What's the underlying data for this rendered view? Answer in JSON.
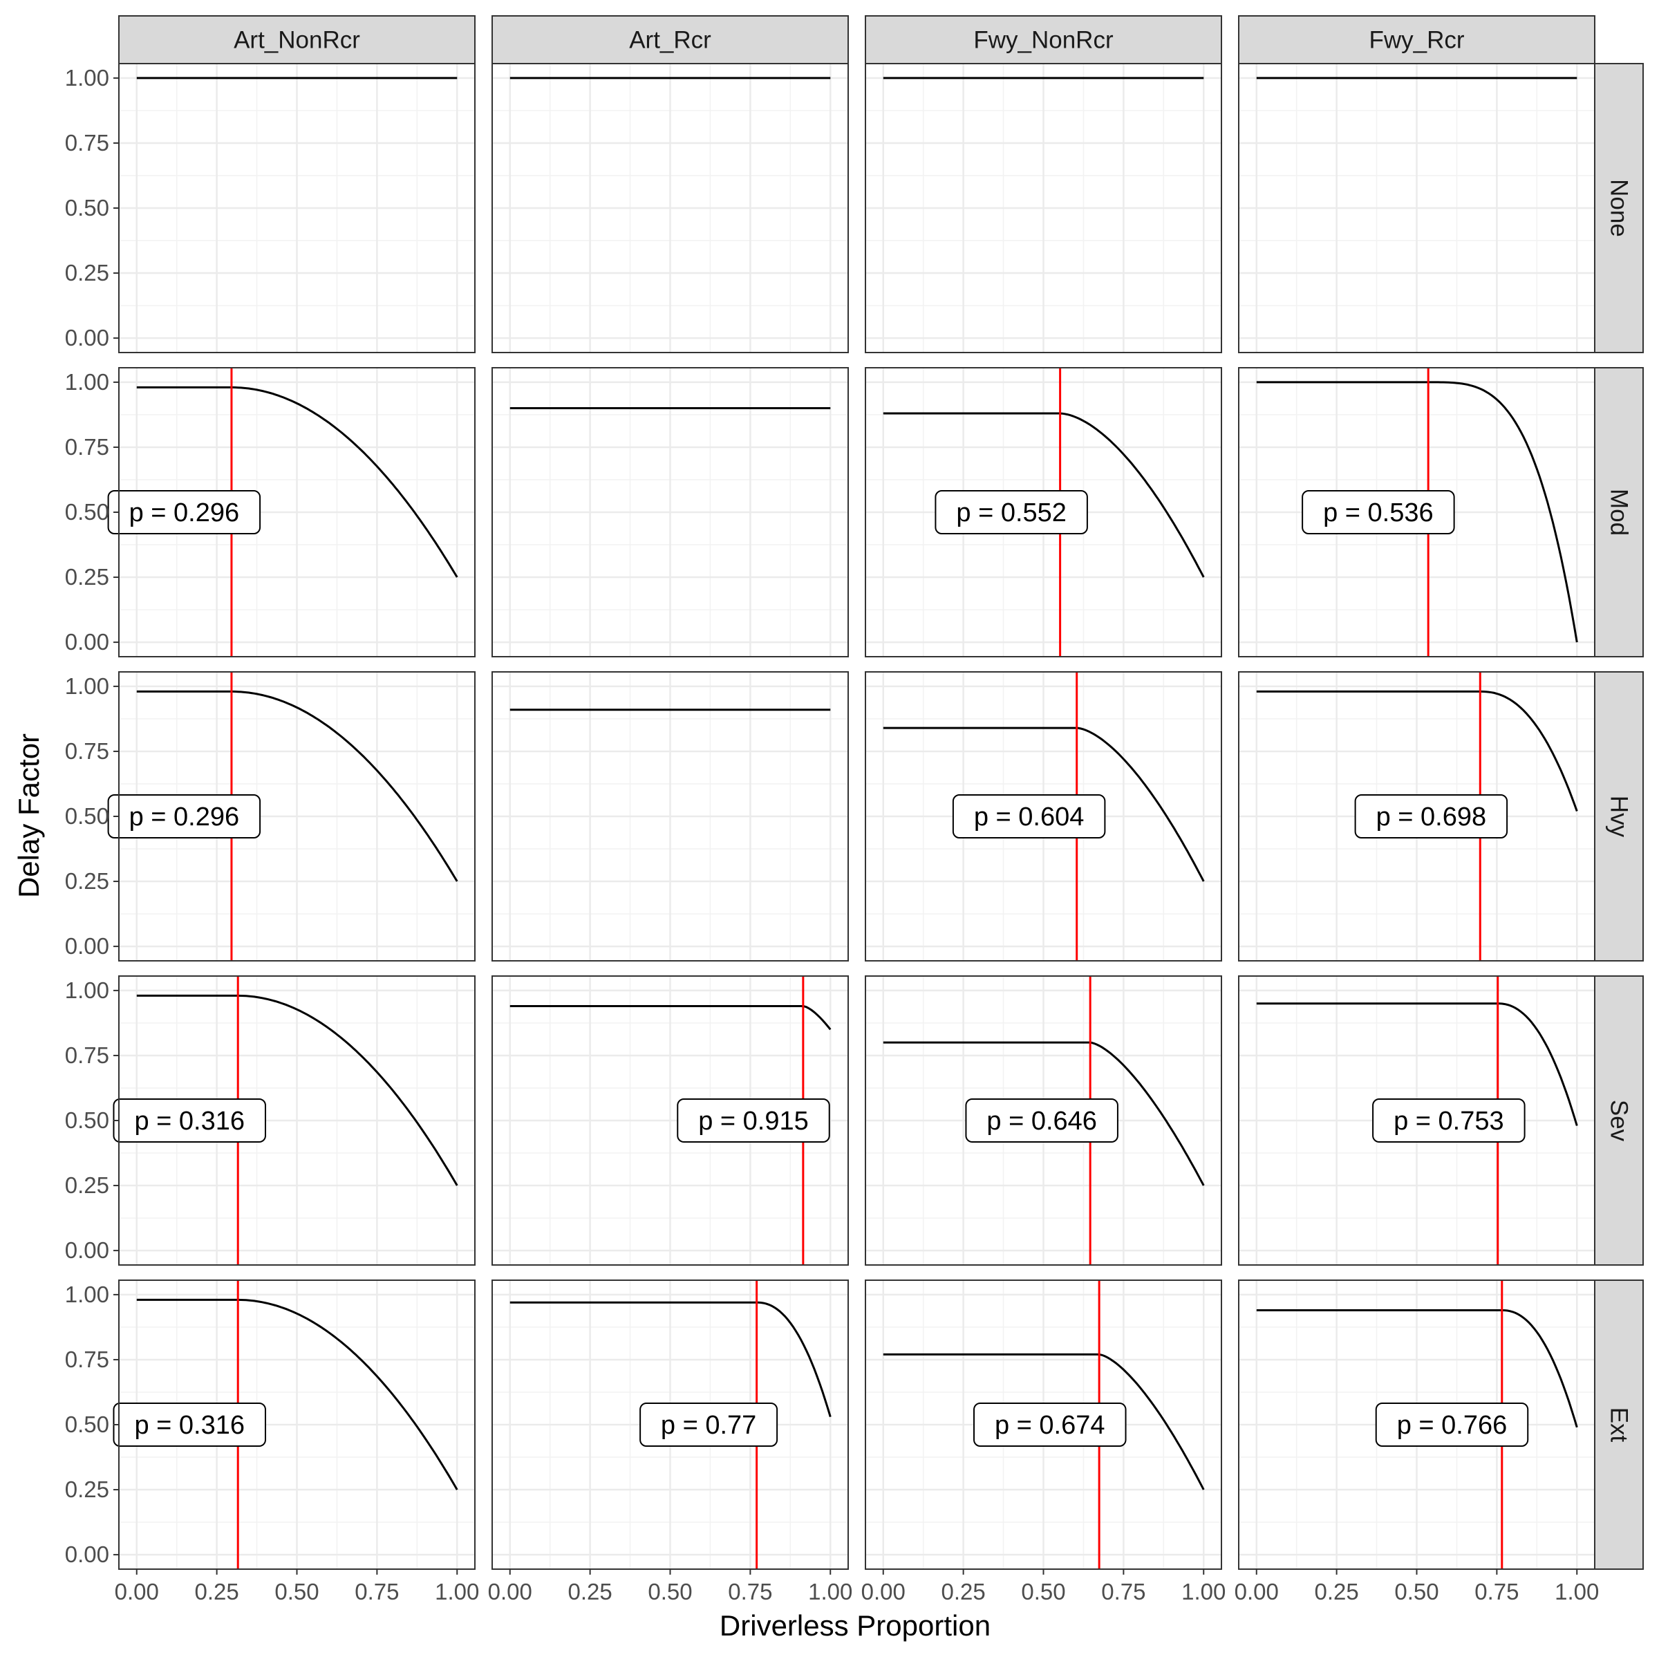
{
  "chart_data": {
    "type": "line",
    "layout": "facet_grid",
    "xlabel": "Driverless Proportion",
    "ylabel": "Delay Factor",
    "xlim": [
      0,
      1
    ],
    "ylim": [
      0,
      1
    ],
    "x_ticks": [
      "0.00",
      "0.25",
      "0.50",
      "0.75",
      "1.00"
    ],
    "y_ticks": [
      "0.00",
      "0.25",
      "0.50",
      "0.75",
      "1.00"
    ],
    "grid": true,
    "columns": [
      "Art_NonRcr",
      "Art_Rcr",
      "Fwy_NonRcr",
      "Fwy_Rcr"
    ],
    "rows": [
      "None",
      "Mod",
      "Hvy",
      "Sev",
      "Ext"
    ],
    "line_color": "#000000",
    "threshold_color": "#ff0000",
    "panels": [
      {
        "row": "None",
        "col": "Art_NonRcr",
        "plateau": 1.0,
        "p": null,
        "p_label": "",
        "end": 1.0,
        "exponent": 2,
        "label_x": 0
      },
      {
        "row": "None",
        "col": "Art_Rcr",
        "plateau": 1.0,
        "p": null,
        "p_label": "",
        "end": 1.0,
        "exponent": 2,
        "label_x": 0
      },
      {
        "row": "None",
        "col": "Fwy_NonRcr",
        "plateau": 1.0,
        "p": null,
        "p_label": "",
        "end": 1.0,
        "exponent": 2,
        "label_x": 0
      },
      {
        "row": "None",
        "col": "Fwy_Rcr",
        "plateau": 1.0,
        "p": null,
        "p_label": "",
        "end": 1.0,
        "exponent": 2,
        "label_x": 0
      },
      {
        "row": "Mod",
        "col": "Art_NonRcr",
        "plateau": 0.98,
        "p": 0.296,
        "p_label": "p = 0.296",
        "end": 0.25,
        "exponent": 2,
        "label_x": 0.148
      },
      {
        "row": "Mod",
        "col": "Art_Rcr",
        "plateau": 0.9,
        "p": null,
        "p_label": "",
        "end": 0.9,
        "exponent": 2,
        "label_x": 0
      },
      {
        "row": "Mod",
        "col": "Fwy_NonRcr",
        "plateau": 0.88,
        "p": 0.552,
        "p_label": "p = 0.552",
        "end": 0.25,
        "exponent": 1.7,
        "label_x": 0.4
      },
      {
        "row": "Mod",
        "col": "Fwy_Rcr",
        "plateau": 1.0,
        "p": 0.536,
        "p_label": "p = 0.536",
        "end": 0.0,
        "exponent": 3.5,
        "label_x": 0.38
      },
      {
        "row": "Hvy",
        "col": "Art_NonRcr",
        "plateau": 0.98,
        "p": 0.296,
        "p_label": "p = 0.296",
        "end": 0.25,
        "exponent": 2,
        "label_x": 0.148
      },
      {
        "row": "Hvy",
        "col": "Art_Rcr",
        "plateau": 0.91,
        "p": null,
        "p_label": "",
        "end": 0.91,
        "exponent": 2,
        "label_x": 0
      },
      {
        "row": "Hvy",
        "col": "Fwy_NonRcr",
        "plateau": 0.84,
        "p": 0.604,
        "p_label": "p = 0.604",
        "end": 0.25,
        "exponent": 1.6,
        "label_x": 0.455
      },
      {
        "row": "Hvy",
        "col": "Fwy_Rcr",
        "plateau": 0.98,
        "p": 0.698,
        "p_label": "p = 0.698",
        "end": 0.52,
        "exponent": 2.3,
        "label_x": 0.545
      },
      {
        "row": "Sev",
        "col": "Art_NonRcr",
        "plateau": 0.98,
        "p": 0.316,
        "p_label": "p = 0.316",
        "end": 0.25,
        "exponent": 2,
        "label_x": 0.165
      },
      {
        "row": "Sev",
        "col": "Art_Rcr",
        "plateau": 0.94,
        "p": 0.915,
        "p_label": "p = 0.915",
        "end": 0.85,
        "exponent": 1.5,
        "label_x": 0.76
      },
      {
        "row": "Sev",
        "col": "Fwy_NonRcr",
        "plateau": 0.8,
        "p": 0.646,
        "p_label": "p = 0.646",
        "end": 0.25,
        "exponent": 1.5,
        "label_x": 0.495
      },
      {
        "row": "Sev",
        "col": "Fwy_Rcr",
        "plateau": 0.95,
        "p": 0.753,
        "p_label": "p = 0.753",
        "end": 0.48,
        "exponent": 2.2,
        "label_x": 0.6
      },
      {
        "row": "Ext",
        "col": "Art_NonRcr",
        "plateau": 0.98,
        "p": 0.316,
        "p_label": "p = 0.316",
        "end": 0.25,
        "exponent": 2,
        "label_x": 0.165
      },
      {
        "row": "Ext",
        "col": "Art_Rcr",
        "plateau": 0.97,
        "p": 0.77,
        "p_label": "p = 0.77",
        "end": 0.53,
        "exponent": 2.2,
        "label_x": 0.62
      },
      {
        "row": "Ext",
        "col": "Fwy_NonRcr",
        "plateau": 0.77,
        "p": 0.674,
        "p_label": "p = 0.674",
        "end": 0.25,
        "exponent": 1.5,
        "label_x": 0.52
      },
      {
        "row": "Ext",
        "col": "Fwy_Rcr",
        "plateau": 0.94,
        "p": 0.766,
        "p_label": "p = 0.766",
        "end": 0.49,
        "exponent": 2.2,
        "label_x": 0.61
      }
    ]
  }
}
